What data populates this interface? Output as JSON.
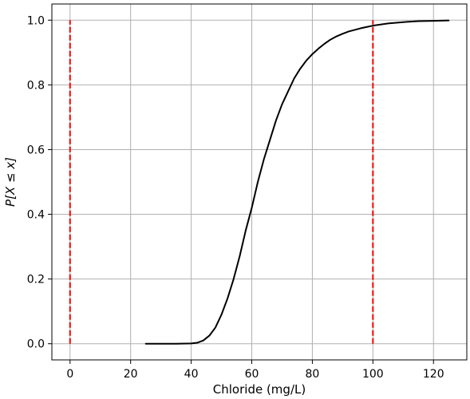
{
  "chart_data": {
    "type": "line",
    "title": "",
    "xlabel": "Chloride (mg/L)",
    "ylabel": "P[X ≤ x]",
    "xlim": [
      -6,
      131
    ],
    "ylim": [
      -0.05,
      1.05
    ],
    "xticks": [
      0,
      20,
      40,
      60,
      80,
      100,
      120
    ],
    "yticks": [
      0.0,
      0.2,
      0.4,
      0.6,
      0.8,
      1.0
    ],
    "xtick_labels": [
      "0",
      "20",
      "40",
      "60",
      "80",
      "100",
      "120"
    ],
    "ytick_labels": [
      "0.0",
      "0.2",
      "0.4",
      "0.6",
      "0.8",
      "1.0"
    ],
    "grid": true,
    "series": [
      {
        "color": "#000000",
        "style": "solid",
        "x": [
          25,
          35,
          40,
          42,
          44,
          46,
          48,
          50,
          52,
          54,
          56,
          58,
          60,
          62,
          64,
          66,
          68,
          70,
          72,
          74,
          76,
          78,
          80,
          82,
          84,
          86,
          88,
          90,
          92,
          94,
          96,
          98,
          100,
          105,
          110,
          115,
          120,
          125
        ],
        "y": [
          0.0,
          0.0,
          0.001,
          0.003,
          0.01,
          0.025,
          0.05,
          0.09,
          0.14,
          0.2,
          0.27,
          0.35,
          0.42,
          0.5,
          0.57,
          0.63,
          0.69,
          0.74,
          0.78,
          0.82,
          0.85,
          0.875,
          0.895,
          0.912,
          0.927,
          0.94,
          0.95,
          0.958,
          0.965,
          0.97,
          0.975,
          0.979,
          0.983,
          0.99,
          0.994,
          0.997,
          0.998,
          0.999
        ]
      }
    ],
    "vlines": [
      {
        "x": 0,
        "y_range": [
          0,
          1
        ],
        "color": "#ff0000",
        "style": "dashed"
      },
      {
        "x": 100,
        "y_range": [
          0,
          1
        ],
        "color": "#ff0000",
        "style": "dashed"
      }
    ]
  }
}
